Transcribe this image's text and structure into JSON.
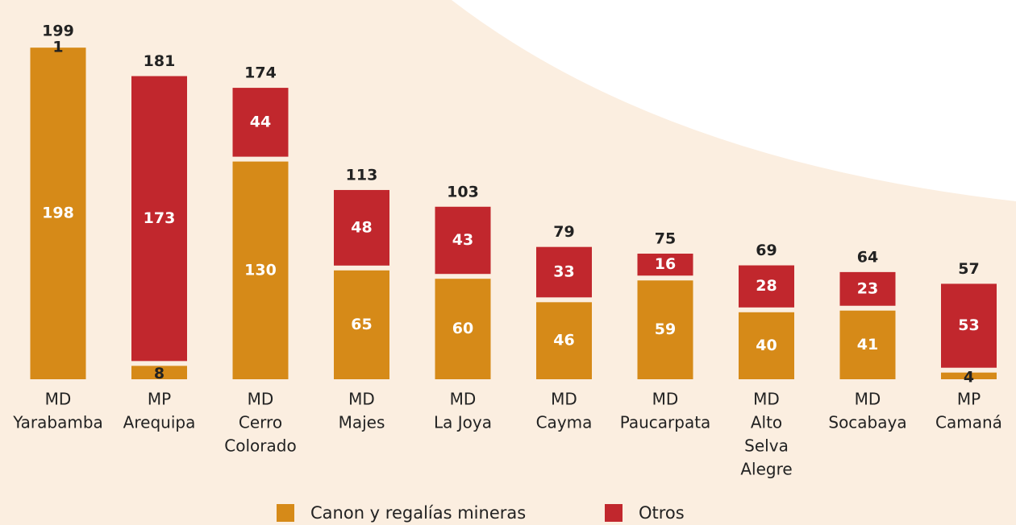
{
  "chart_data": {
    "type": "stacked-bar",
    "categories": [
      [
        "MD",
        "Yarabamba"
      ],
      [
        "MP",
        "Arequipa"
      ],
      [
        "MD",
        "Cerro",
        "Colorado"
      ],
      [
        "MD",
        "Majes"
      ],
      [
        "MD",
        "La Joya"
      ],
      [
        "MD",
        "Cayma"
      ],
      [
        "MD",
        "Paucarpata"
      ],
      [
        "MD",
        "Alto",
        "Selva",
        "Alegre"
      ],
      [
        "MD",
        "Socabaya"
      ],
      [
        "MP",
        "Camaná"
      ]
    ],
    "series": [
      {
        "name": "Canon y regalías mineras",
        "color": "#d68a18",
        "values": [
          198,
          8,
          130,
          65,
          60,
          46,
          59,
          40,
          41,
          4
        ]
      },
      {
        "name": "Otros",
        "color": "#c1272d",
        "values": [
          1,
          173,
          44,
          48,
          43,
          33,
          16,
          28,
          23,
          53
        ]
      }
    ],
    "totals": [
      199,
      181,
      174,
      113,
      103,
      79,
      75,
      69,
      64,
      57
    ]
  }
}
